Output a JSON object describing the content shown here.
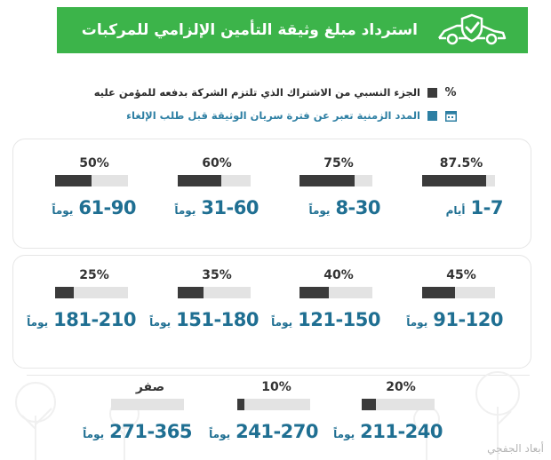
{
  "header": {
    "title": "استرداد مبلغ وثيقة التأمين الإلزامي للمركبات",
    "color": "#3cb44a",
    "logo_icon": "car-shield-check-icon"
  },
  "legend": {
    "items": [
      {
        "icon": "percent-icon",
        "icon_text": "%",
        "swatch": "#3b3b3b",
        "label": "الجزء النسبي من الاشتراك الذي تلتزم الشركة بدفعه للمؤمن عليه"
      },
      {
        "icon": "calendar-icon",
        "swatch": "#2d7fa3",
        "label": "المدد الزمنية تعبر عن فترة سريان الوثيقة قبل طلب الإلغاء"
      }
    ]
  },
  "chart_data": {
    "type": "bar",
    "title": "استرداد مبلغ وثيقة التأمين الإلزامي للمركبات",
    "categories": [
      "1-7",
      "8-30",
      "31-60",
      "61-90",
      "91-120",
      "121-150",
      "151-180",
      "181-210",
      "211-240",
      "241-270",
      "271-365"
    ],
    "values": [
      87.5,
      75,
      60,
      50,
      45,
      40,
      35,
      25,
      20,
      10,
      0
    ],
    "series": [
      {
        "name": "الجزء النسبي من الاشتراك الذي تلتزم الشركة بدفعه للمؤمن عليه",
        "values": [
          87.5,
          75,
          60,
          50,
          45,
          40,
          35,
          25,
          20,
          10,
          0
        ]
      }
    ],
    "ylim": [
      0,
      100
    ],
    "unit": "%"
  },
  "cards": [
    {
      "pct_label": "87.5%",
      "value": 87.5,
      "range": "1-7",
      "unit": "أيام"
    },
    {
      "pct_label": "75%",
      "value": 75,
      "range": "8-30",
      "unit": "يوماً"
    },
    {
      "pct_label": "60%",
      "value": 60,
      "range": "31-60",
      "unit": "يوماً"
    },
    {
      "pct_label": "50%",
      "value": 50,
      "range": "61-90",
      "unit": "يوماً"
    },
    {
      "pct_label": "45%",
      "value": 45,
      "range": "91-120",
      "unit": "يوماً"
    },
    {
      "pct_label": "40%",
      "value": 40,
      "range": "121-150",
      "unit": "يوماً"
    },
    {
      "pct_label": "35%",
      "value": 35,
      "range": "151-180",
      "unit": "يوماً"
    },
    {
      "pct_label": "25%",
      "value": 25,
      "range": "181-210",
      "unit": "يوماً"
    },
    {
      "pct_label": "20%",
      "value": 20,
      "range": "211-240",
      "unit": "يوماً"
    },
    {
      "pct_label": "10%",
      "value": 10,
      "range": "241-270",
      "unit": "يوماً"
    },
    {
      "pct_label": "صفر",
      "value": 0,
      "range": "271-365",
      "unit": "يوماً"
    }
  ],
  "colors": {
    "bar_fill": "#3b3b3b",
    "bar_track": "#e3e3e3",
    "range_text": "#1f6f92"
  },
  "watermark": "أبعاد الجفجي"
}
